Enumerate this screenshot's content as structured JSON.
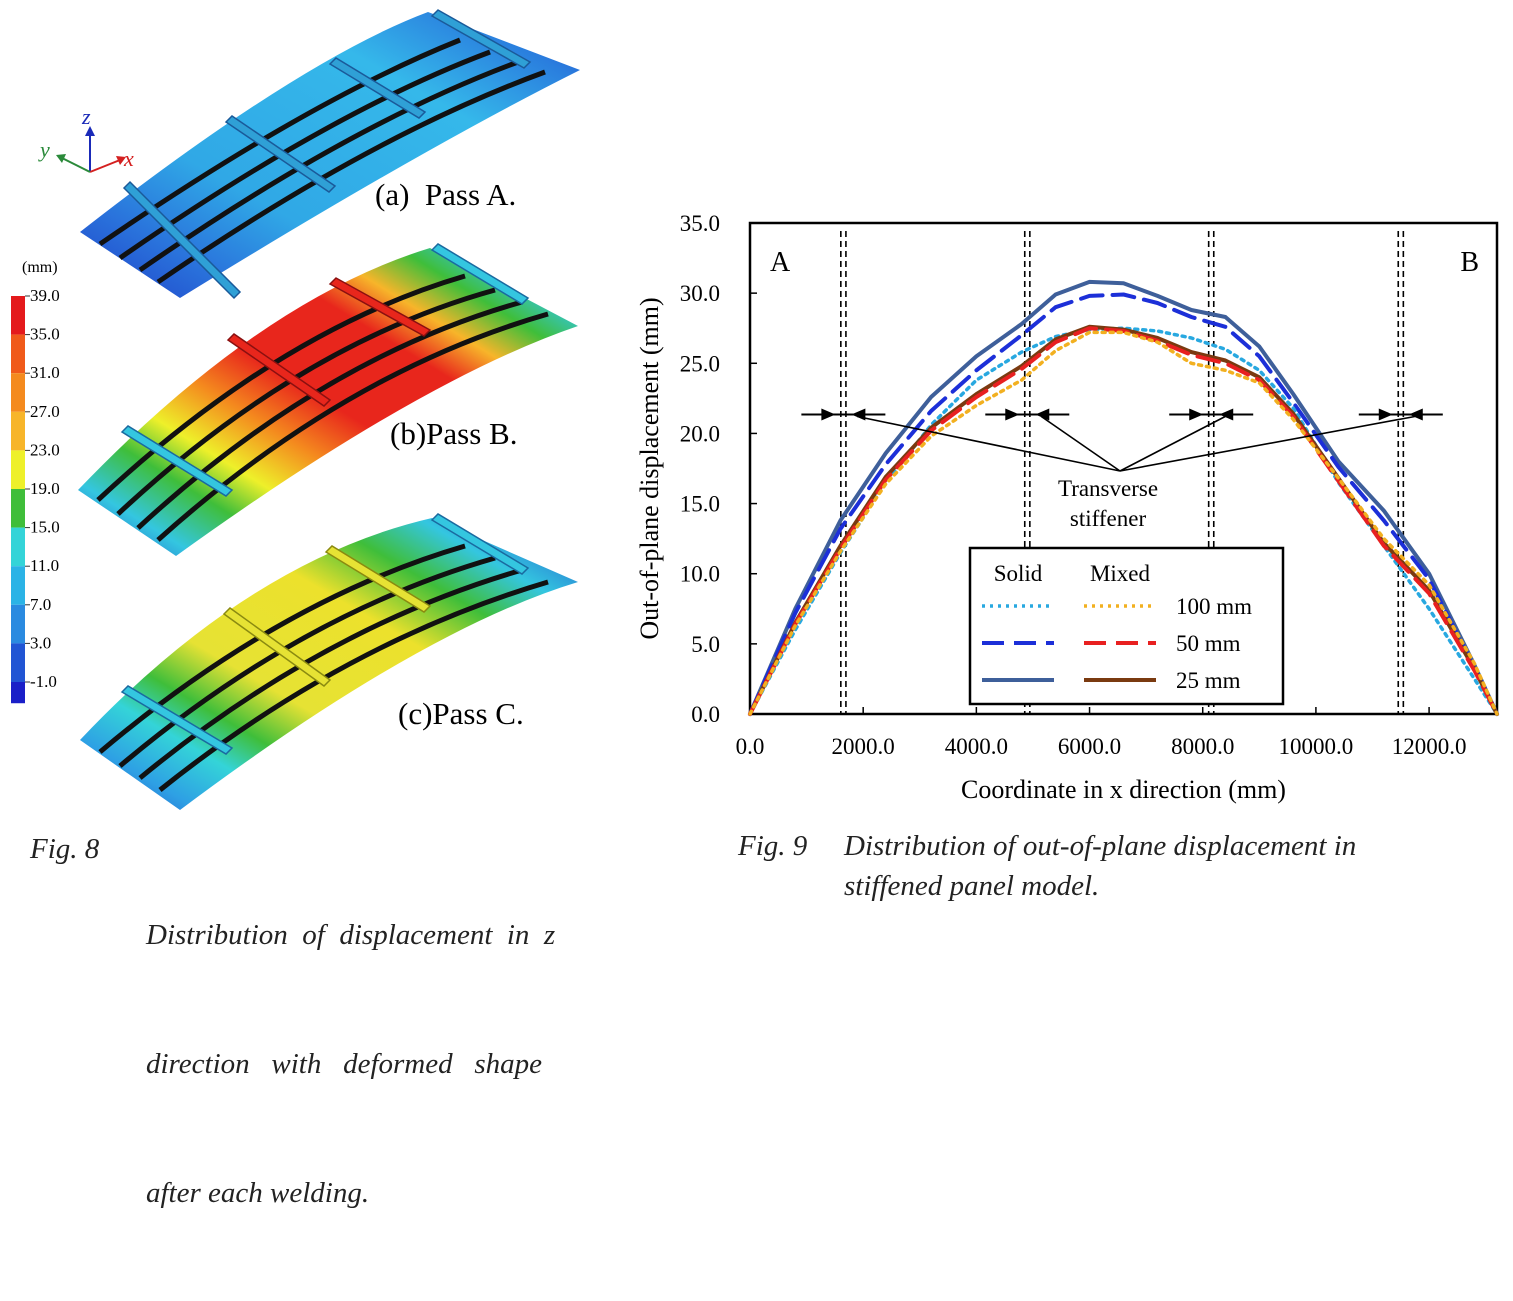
{
  "fig8": {
    "axes": {
      "z": "z",
      "y": "y",
      "x": "x"
    },
    "colorbar": {
      "unit": "(mm)",
      "ticks": [
        "39.0",
        "35.0",
        "31.0",
        "27.0",
        "23.0",
        "19.0",
        "15.0",
        "11.0",
        "7.0",
        "3.0",
        "-1.0"
      ],
      "colors": [
        "#e41a1c",
        "#f05a1a",
        "#f48a1e",
        "#f7b52a",
        "#eef02a",
        "#3fbe3a",
        "#34d4d8",
        "#2bb3e6",
        "#2a8ae0",
        "#2155d4",
        "#1a1fc8"
      ]
    },
    "panels": [
      {
        "label": "(a)  Pass A."
      },
      {
        "label": "(b)Pass B."
      },
      {
        "label": "(c)Pass C."
      }
    ],
    "caption": {
      "number": "Fig. 8",
      "lines": [
        "Distribution  of  displacement  in  z",
        "direction   with   deformed   shape",
        "after each welding."
      ]
    }
  },
  "fig9": {
    "caption": {
      "number": "Fig. 9",
      "lines": [
        "Distribution of out-of-plane displacement in",
        "stiffened panel model."
      ]
    },
    "annotation": {
      "line1": "Transverse",
      "line2": "stiffener"
    },
    "legend": {
      "col_solid": "Solid",
      "col_mixed": "Mixed",
      "rows": [
        "100 mm",
        "50 mm",
        "25 mm"
      ]
    },
    "colors": {
      "solid_100": "#28a8e0",
      "solid_50": "#1c2fd8",
      "solid_25": "#3e5f9a",
      "mixed_100": "#f2b020",
      "mixed_50": "#e82020",
      "mixed_25": "#7a3a10"
    }
  },
  "chart_data": {
    "type": "line",
    "title": "",
    "xlabel": "Coordinate in x direction (mm)",
    "ylabel": "Out-of-plane displacement (mm)",
    "xlim": [
      0,
      13200
    ],
    "ylim": [
      0,
      35
    ],
    "xticks": [
      0,
      2000,
      4000,
      6000,
      8000,
      10000,
      12000
    ],
    "xtick_labels": [
      "0.0",
      "2000.0",
      "4000.0",
      "6000.0",
      "8000.0",
      "10000.0",
      "12000.0"
    ],
    "yticks": [
      0,
      5,
      10,
      15,
      20,
      25,
      30,
      35
    ],
    "ytick_labels": [
      "0.0",
      "5.0",
      "10.0",
      "15.0",
      "20.0",
      "25.0",
      "30.0",
      "35.0"
    ],
    "corner_labels": {
      "left": "A",
      "right": "B"
    },
    "stiffeners": [
      1650,
      4900,
      8150,
      11500
    ],
    "series": [
      {
        "name": "Solid 25 mm",
        "style": "solid",
        "color_key": "solid_25",
        "x": [
          0,
          800,
          1600,
          2400,
          3200,
          4000,
          4800,
          5400,
          6000,
          6600,
          7200,
          7800,
          8400,
          9000,
          9600,
          10400,
          11200,
          12000,
          12800,
          13200
        ],
        "y": [
          0,
          7.5,
          13.8,
          18.6,
          22.6,
          25.5,
          27.8,
          29.9,
          30.8,
          30.7,
          29.8,
          28.8,
          28.3,
          26.2,
          22.8,
          18.0,
          14.5,
          10.0,
          3.5,
          0
        ]
      },
      {
        "name": "Solid 50 mm",
        "style": "dashed",
        "color_key": "solid_50",
        "x": [
          0,
          800,
          1600,
          2400,
          3200,
          4000,
          4800,
          5400,
          6000,
          6600,
          7200,
          7800,
          8400,
          9000,
          9600,
          10400,
          11200,
          12000,
          12800,
          13200
        ],
        "y": [
          0,
          7.2,
          13.2,
          17.8,
          21.6,
          24.5,
          27.0,
          29.0,
          29.8,
          29.9,
          29.3,
          28.3,
          27.6,
          25.5,
          22.2,
          17.6,
          13.8,
          9.6,
          3.3,
          0
        ]
      },
      {
        "name": "Solid 100 mm",
        "style": "dotted",
        "color_key": "solid_100",
        "x": [
          0,
          800,
          1600,
          2400,
          3200,
          4000,
          4800,
          5400,
          6000,
          6600,
          7200,
          7800,
          8400,
          9000,
          9600,
          10400,
          11200,
          12000,
          12800,
          13200
        ],
        "y": [
          0,
          6.0,
          11.5,
          16.5,
          20.6,
          23.8,
          25.8,
          26.9,
          27.4,
          27.5,
          27.3,
          26.8,
          26.0,
          24.5,
          21.8,
          16.5,
          12.0,
          7.5,
          2.5,
          0
        ]
      },
      {
        "name": "Mixed 25 mm",
        "style": "solid",
        "color_key": "mixed_25",
        "x": [
          0,
          800,
          1600,
          2400,
          3200,
          4000,
          4800,
          5400,
          6000,
          6600,
          7200,
          7800,
          8400,
          9000,
          9600,
          10400,
          11200,
          12000,
          12800,
          13200
        ],
        "y": [
          0,
          6.5,
          12.0,
          16.9,
          20.4,
          22.8,
          24.8,
          26.7,
          27.6,
          27.4,
          26.8,
          25.8,
          25.2,
          24.0,
          21.4,
          16.8,
          12.2,
          8.8,
          3.2,
          0
        ]
      },
      {
        "name": "Mixed 50 mm",
        "style": "dashed",
        "color_key": "mixed_50",
        "x": [
          0,
          800,
          1600,
          2400,
          3200,
          4000,
          4800,
          5400,
          6000,
          6600,
          7200,
          7800,
          8400,
          9000,
          9600,
          10400,
          11200,
          12000,
          12800,
          13200
        ],
        "y": [
          0,
          6.4,
          11.8,
          16.7,
          20.2,
          22.6,
          24.6,
          26.5,
          27.5,
          27.3,
          26.6,
          25.6,
          25.0,
          23.8,
          21.2,
          16.6,
          12.0,
          8.6,
          3.1,
          0
        ]
      },
      {
        "name": "Mixed 100 mm",
        "style": "dotted",
        "color_key": "mixed_100",
        "x": [
          0,
          800,
          1600,
          2400,
          3200,
          4000,
          4800,
          5400,
          6000,
          6600,
          7200,
          7800,
          8400,
          9000,
          9600,
          10400,
          11200,
          12000,
          12800,
          13200
        ],
        "y": [
          0,
          6.3,
          11.6,
          16.4,
          19.8,
          22.0,
          23.8,
          25.9,
          27.2,
          27.2,
          26.5,
          25.0,
          24.5,
          23.6,
          21.0,
          16.8,
          12.5,
          9.2,
          3.6,
          0
        ]
      }
    ]
  }
}
